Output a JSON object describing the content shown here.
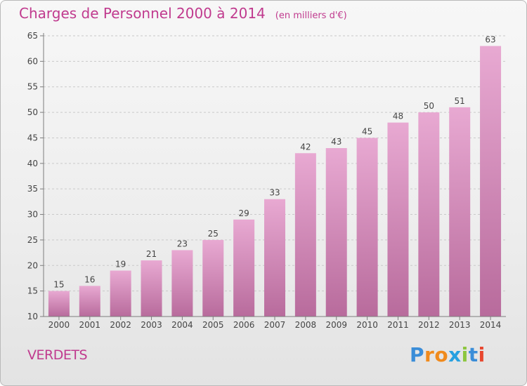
{
  "title": "Charges de Personnel 2000 à 2014",
  "subtitle": "(en milliers d'€)",
  "entity": "VERDETS",
  "brand": {
    "text": "Proxiti",
    "letter_colors": [
      "#3a8dd8",
      "#f08a1c",
      "#f08a1c",
      "#27a0e0",
      "#8dc63f",
      "#3a8dd8",
      "#e8472f"
    ]
  },
  "colors": {
    "title": "#c03a8e",
    "bar_top": "#e8a9d2",
    "bar_bottom": "#b86b9c",
    "axis": "#7d7d7d",
    "grid": "#c9c9c9"
  },
  "chart_data": {
    "type": "bar",
    "categories": [
      "2000",
      "2001",
      "2002",
      "2003",
      "2004",
      "2005",
      "2006",
      "2007",
      "2008",
      "2009",
      "2010",
      "2011",
      "2012",
      "2013",
      "2014"
    ],
    "values": [
      15,
      16,
      19,
      21,
      23,
      25,
      29,
      33,
      42,
      43,
      45,
      48,
      50,
      51,
      63
    ],
    "ylim": [
      10,
      65
    ],
    "yticks": [
      10,
      15,
      20,
      25,
      30,
      35,
      40,
      45,
      50,
      55,
      60,
      65
    ],
    "grid": true,
    "data_labels": true,
    "xlabel": "",
    "ylabel": ""
  }
}
